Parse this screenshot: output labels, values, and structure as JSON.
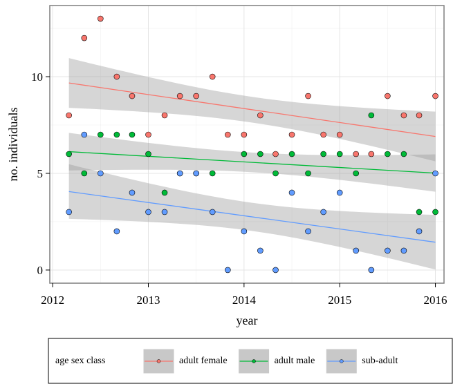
{
  "chart_data": {
    "type": "scatter",
    "xlabel": "year",
    "ylabel": "no. individuals",
    "x": [
      2012.17,
      2012.33,
      2012.5,
      2012.67,
      2012.83,
      2013,
      2013.17,
      2013.33,
      2013.5,
      2013.67,
      2013.83,
      2014,
      2014.17,
      2014.33,
      2014.5,
      2014.67,
      2014.83,
      2015,
      2015.17,
      2015.33,
      2015.5,
      2015.67,
      2015.83,
      2016
    ],
    "series": [
      {
        "name": "adult female",
        "color": "#F8766D",
        "values": [
          8,
          12,
          13,
          10,
          9,
          7,
          8,
          9,
          9,
          10,
          7,
          7,
          8,
          6,
          7,
          9,
          7,
          7,
          6,
          6,
          9,
          8,
          8,
          9
        ]
      },
      {
        "name": "adult male",
        "color": "#00BA38",
        "values": [
          6,
          5,
          7,
          7,
          7,
          6,
          4,
          5,
          5,
          5,
          null,
          6,
          6,
          5,
          6,
          5,
          6,
          6,
          5,
          8,
          6,
          6,
          3,
          3
        ]
      },
      {
        "name": "sub-adult",
        "color": "#619CFF",
        "values": [
          3,
          7,
          5,
          2,
          4,
          3,
          3,
          5,
          5,
          3,
          0,
          2,
          1,
          0,
          4,
          2,
          3,
          4,
          1,
          0,
          1,
          1,
          2,
          5
        ]
      }
    ],
    "xlim": [
      2011.97,
      2016.09
    ],
    "xticks": [
      2012,
      2013,
      2014,
      2015,
      2016
    ],
    "ylim": [
      -0.68,
      13.68
    ],
    "yticks": [
      0,
      5,
      10
    ],
    "grid": true,
    "trend": "linear",
    "legend_title": "age sex class",
    "legend": "bottom"
  }
}
